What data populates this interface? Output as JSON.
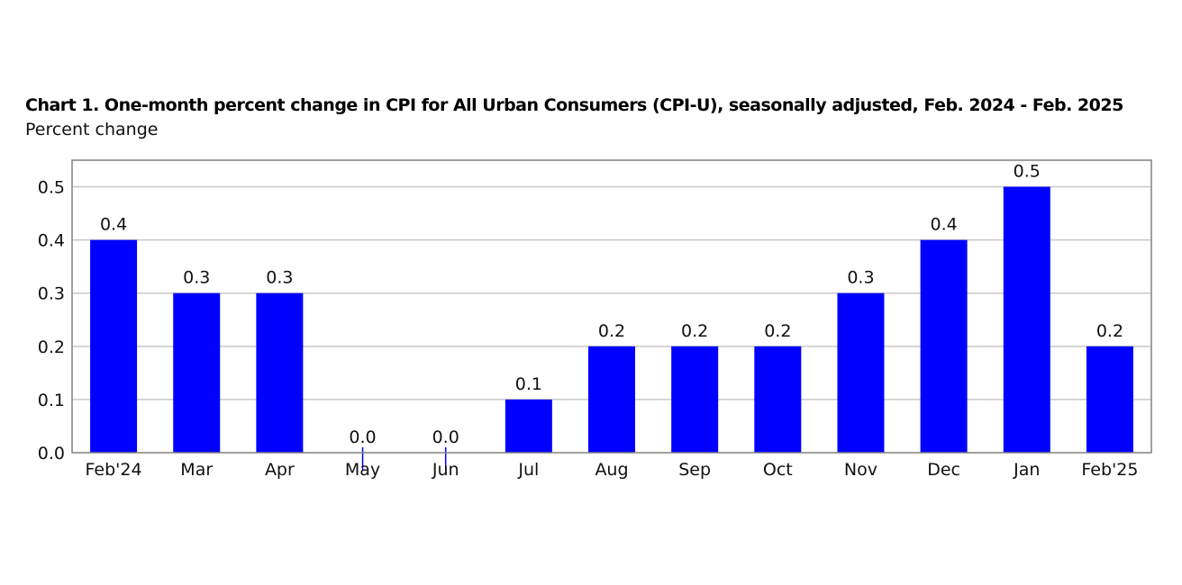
{
  "chart_data": {
    "type": "bar",
    "title": "Chart 1. One-month percent change in CPI for All Urban Consumers (CPI-U), seasonally adjusted, Feb. 2024 - Feb. 2025",
    "ylabel": "Percent change",
    "xlabel": "",
    "categories": [
      "Feb'24",
      "Mar",
      "Apr",
      "May",
      "Jun",
      "Jul",
      "Aug",
      "Sep",
      "Oct",
      "Nov",
      "Dec",
      "Jan",
      "Feb'25"
    ],
    "values": [
      0.4,
      0.3,
      0.3,
      0.0,
      0.0,
      0.1,
      0.2,
      0.2,
      0.2,
      0.3,
      0.4,
      0.5,
      0.2
    ],
    "data_labels": [
      "0.4",
      "0.3",
      "0.3",
      "0.0",
      "0.0",
      "0.1",
      "0.2",
      "0.2",
      "0.2",
      "0.3",
      "0.4",
      "0.5",
      "0.2"
    ],
    "ylim": [
      0,
      0.55
    ],
    "yticks": [
      0.0,
      0.1,
      0.2,
      0.3,
      0.4,
      0.5
    ],
    "ytick_labels": [
      "0.0",
      "0.1",
      "0.2",
      "0.3",
      "0.4",
      "0.5"
    ],
    "grid": true,
    "legend": "none",
    "bar_color": "#0000ff",
    "grid_color": "#c8c8c8",
    "frame_color": "#808080"
  }
}
